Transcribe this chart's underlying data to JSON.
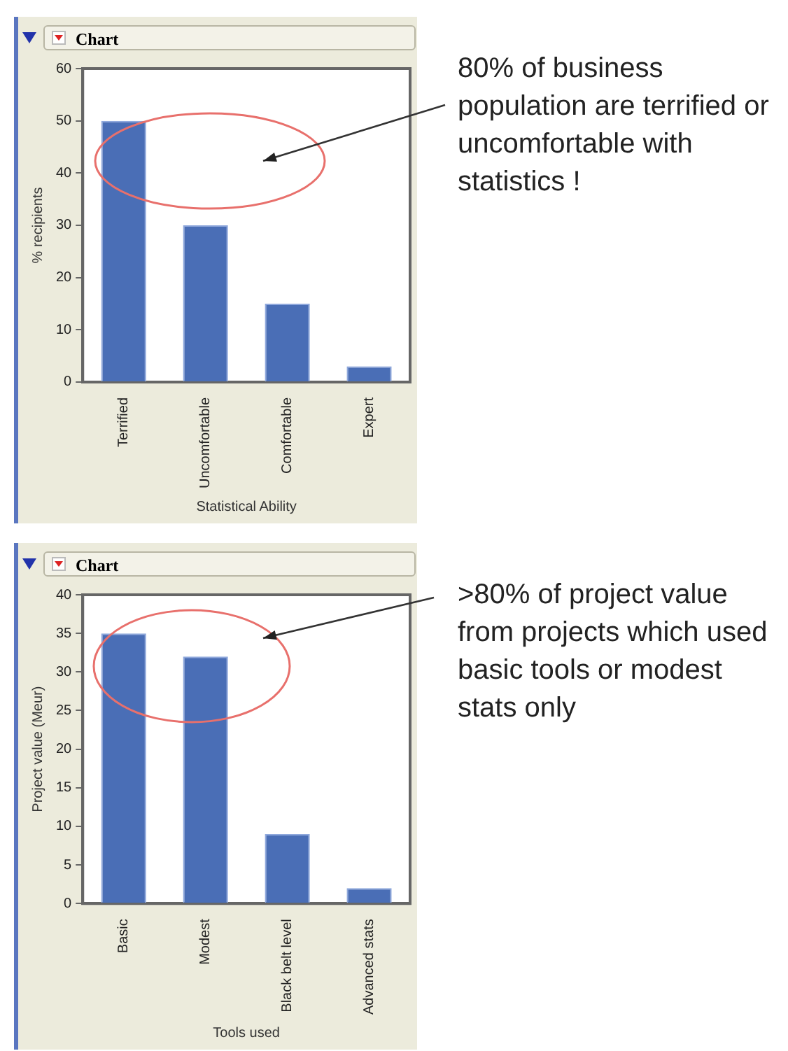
{
  "chart_data": [
    {
      "type": "bar",
      "title": "Chart",
      "categories": [
        "Terrified",
        "Uncomfortable",
        "Comfortable",
        "Expert"
      ],
      "values": [
        50,
        30,
        15,
        3
      ],
      "color": "#4a6eb6",
      "xlabel": "Statistical Ability",
      "ylabel": "% recipients",
      "ylim": [
        0,
        60
      ],
      "yticks": [
        0,
        10,
        20,
        30,
        40,
        50,
        60
      ],
      "grid": false,
      "annotations": [
        "80% of business population are terrified or uncomfortable with statistics !"
      ]
    },
    {
      "type": "bar",
      "title": "Chart",
      "categories": [
        "Basic",
        "Modest",
        "Black belt level",
        "Advanced stats"
      ],
      "values": [
        35,
        32,
        9,
        2
      ],
      "color": "#4a6eb6",
      "xlabel": "Tools used",
      "ylabel": "Project value (Meur)",
      "ylim": [
        0,
        40
      ],
      "yticks": [
        0,
        5,
        10,
        15,
        20,
        25,
        30,
        35,
        40
      ],
      "grid": false,
      "annotations": [
        ">80% of project value from projects which used basic tools or modest stats only"
      ]
    }
  ]
}
